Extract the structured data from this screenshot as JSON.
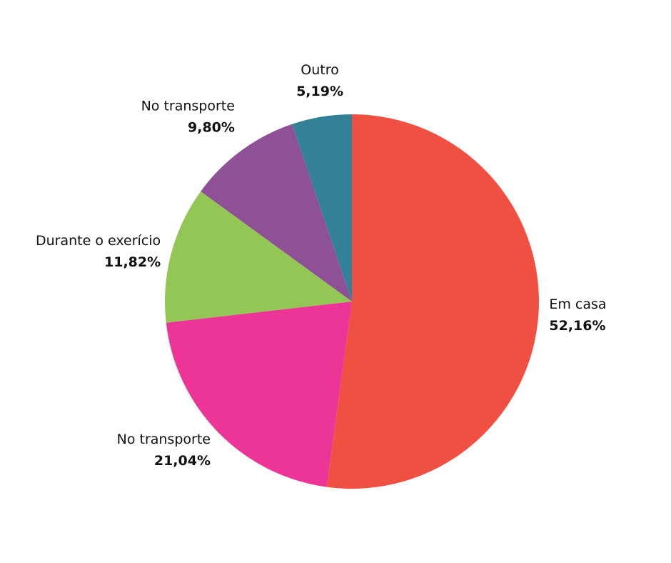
{
  "chart_data": {
    "type": "pie",
    "categories": [
      "Em casa",
      "No transporte",
      "Durante o exerício",
      "No transporte",
      "Outro"
    ],
    "values": [
      52.16,
      21.04,
      11.82,
      9.8,
      5.19
    ],
    "value_labels": [
      "52,16%",
      "21,04%",
      "11,82%",
      "9,80%",
      "5,19%"
    ],
    "colors": [
      "#ef5041",
      "#ec3597",
      "#93c655",
      "#8e5196",
      "#338196"
    ]
  }
}
